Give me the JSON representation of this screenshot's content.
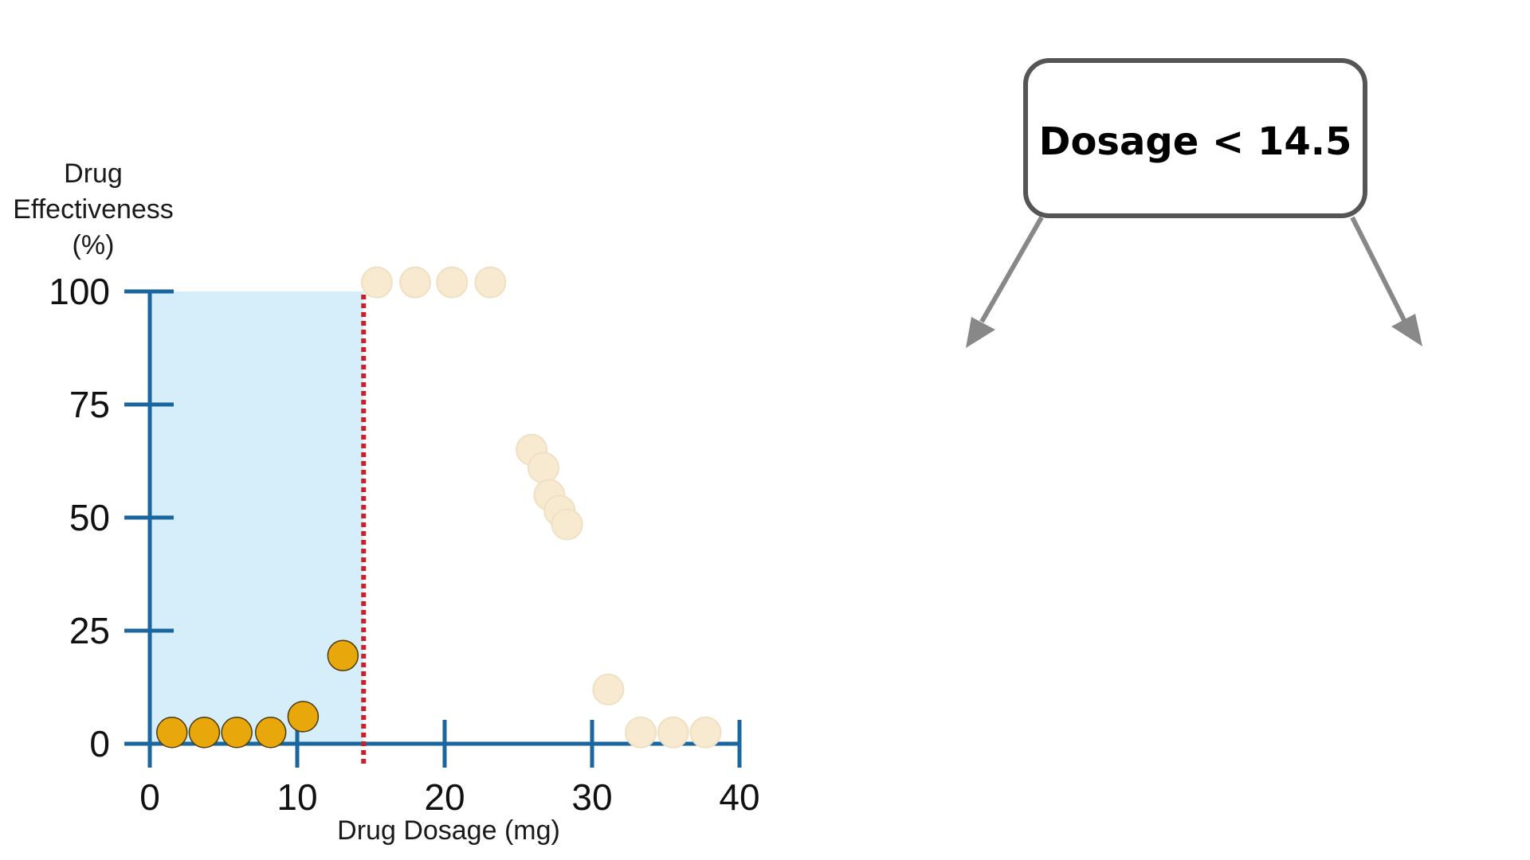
{
  "chart_data": {
    "type": "scatter",
    "xlabel": "Drug Dosage (mg)",
    "ylabel": "Drug Effectiveness (%)",
    "ylabel_lines": [
      "Drug",
      "Effectiveness",
      "(%)"
    ],
    "xlim": [
      0,
      40
    ],
    "ylim": [
      0,
      100
    ],
    "x_ticks": [
      0,
      10,
      20,
      30,
      40
    ],
    "y_ticks": [
      0,
      25,
      50,
      75,
      100
    ],
    "grid": false,
    "threshold": 14.5,
    "shaded_region": {
      "x": [
        0,
        14.5
      ],
      "y": [
        0,
        100
      ],
      "color": "#d6eefa"
    },
    "series": [
      {
        "color": "#e8a80c",
        "points": [
          {
            "x": 1.5,
            "y": 2.5
          },
          {
            "x": 3.7,
            "y": 2.5
          },
          {
            "x": 5.9,
            "y": 2.5
          },
          {
            "x": 8.2,
            "y": 2.5
          },
          {
            "x": 10.4,
            "y": 6
          },
          {
            "x": 13.1,
            "y": 19.5
          }
        ]
      },
      {
        "color": "#f8ead0",
        "points": [
          {
            "x": 15.4,
            "y": 102
          },
          {
            "x": 18.0,
            "y": 102
          },
          {
            "x": 20.5,
            "y": 102
          },
          {
            "x": 23.1,
            "y": 102
          },
          {
            "x": 25.9,
            "y": 65
          },
          {
            "x": 26.7,
            "y": 61
          },
          {
            "x": 27.1,
            "y": 55
          },
          {
            "x": 27.8,
            "y": 51.5
          },
          {
            "x": 28.3,
            "y": 48.5
          },
          {
            "x": 31.1,
            "y": 12
          },
          {
            "x": 33.3,
            "y": 2.5
          },
          {
            "x": 35.5,
            "y": 2.5
          },
          {
            "x": 37.7,
            "y": 2.5
          }
        ]
      }
    ]
  },
  "tree": {
    "root_label": "Dosage < 14.5"
  },
  "colors": {
    "axis": "#1a66a0",
    "threshold_line": "#cc1f2a",
    "node_border": "#555555",
    "arrow": "#888888"
  }
}
